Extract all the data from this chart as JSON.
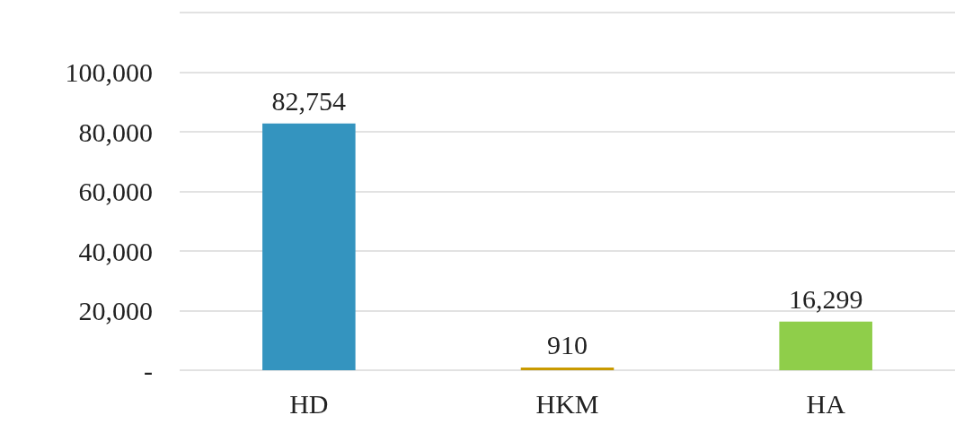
{
  "chart_data": {
    "type": "bar",
    "categories": [
      "HD",
      "HKM",
      "HA"
    ],
    "values": [
      82754,
      910,
      16299
    ],
    "colors": [
      "#3494bf",
      "#c99a00",
      "#8fce4a"
    ],
    "value_labels": [
      "82,754",
      "910",
      "16,299"
    ],
    "ylim": [
      0,
      120000
    ],
    "yticks": [
      {
        "value": 0,
        "label": "-"
      },
      {
        "value": 20000,
        "label": "20,000"
      },
      {
        "value": 40000,
        "label": "40,000"
      },
      {
        "value": 60000,
        "label": "60,000"
      },
      {
        "value": 80000,
        "label": "80,000"
      },
      {
        "value": 100000,
        "label": "100,000"
      },
      {
        "value": 120000,
        "label": null
      }
    ],
    "grid": "y"
  }
}
